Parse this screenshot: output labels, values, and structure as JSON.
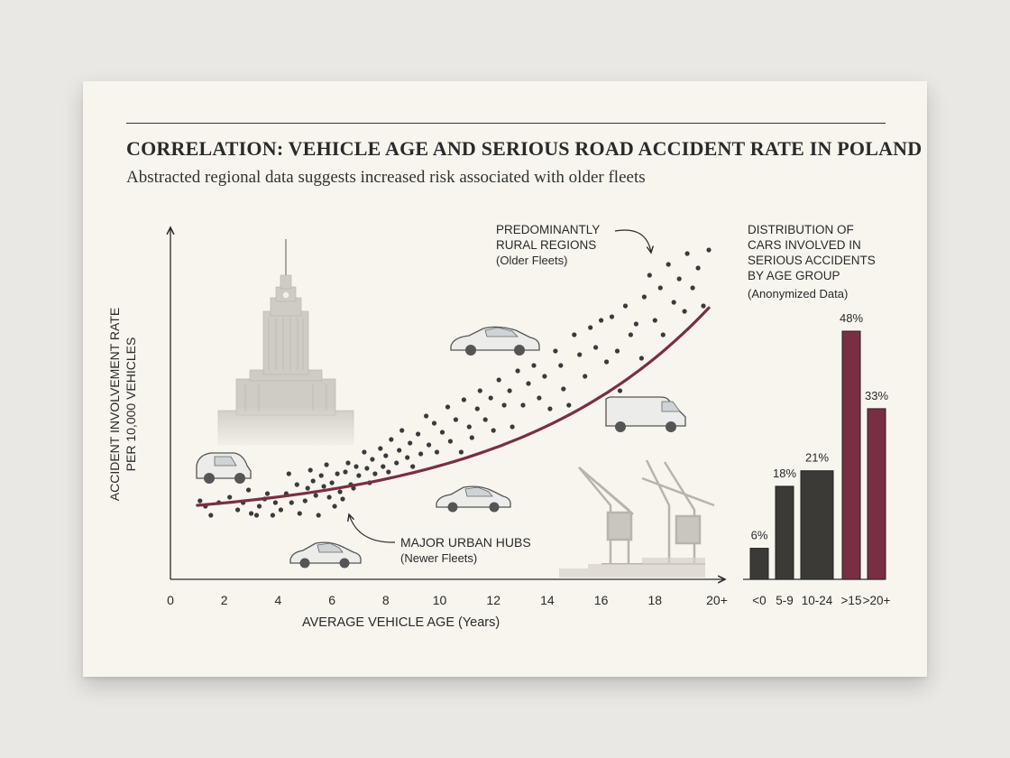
{
  "title": "CORRELATION: VEHICLE AGE AND SERIOUS ROAD ACCIDENT RATE IN POLAND",
  "subtitle": "Abstracted regional data suggests increased risk associated with older fleets",
  "colors": {
    "accent": "#7a2e44",
    "bar_dark": "#3b3a37",
    "dots": "#3a3a3a",
    "background": "#f7f5ee"
  },
  "chart_data": [
    {
      "type": "scatter",
      "xlabel": "AVERAGE VEHICLE AGE",
      "xlabel_unit": "(Years)",
      "ylabel_line1": "ACCIDENT INVOLVEMENT RATE",
      "ylabel_line2": "PER 10,000 VEHICLES",
      "xlim": [
        0,
        20
      ],
      "x_ticks": [
        "0",
        "2",
        "4",
        "6",
        "8",
        "10",
        "12",
        "14",
        "16",
        "18",
        "20+"
      ],
      "grid": false,
      "trend_line": {
        "type": "exponential-fit"
      },
      "points": [
        [
          1.1,
          0.1
        ],
        [
          1.3,
          0.07
        ],
        [
          1.5,
          0.02
        ],
        [
          1.8,
          0.09
        ],
        [
          2.2,
          0.12
        ],
        [
          2.5,
          0.05
        ],
        [
          2.7,
          0.09
        ],
        [
          2.9,
          0.16
        ],
        [
          3.0,
          0.03
        ],
        [
          3.2,
          0.02
        ],
        [
          3.3,
          0.07
        ],
        [
          3.5,
          0.11
        ],
        [
          3.6,
          0.14
        ],
        [
          3.8,
          0.02
        ],
        [
          3.9,
          0.09
        ],
        [
          4.1,
          0.05
        ],
        [
          4.3,
          0.14
        ],
        [
          4.4,
          0.25
        ],
        [
          4.5,
          0.09
        ],
        [
          4.7,
          0.19
        ],
        [
          4.8,
          0.03
        ],
        [
          5.0,
          0.1
        ],
        [
          5.1,
          0.17
        ],
        [
          5.2,
          0.27
        ],
        [
          5.3,
          0.21
        ],
        [
          5.4,
          0.13
        ],
        [
          5.5,
          0.02
        ],
        [
          5.6,
          0.24
        ],
        [
          5.7,
          0.18
        ],
        [
          5.8,
          0.3
        ],
        [
          5.9,
          0.12
        ],
        [
          6.0,
          0.2
        ],
        [
          6.1,
          0.07
        ],
        [
          6.2,
          0.25
        ],
        [
          6.3,
          0.15
        ],
        [
          6.4,
          0.11
        ],
        [
          6.5,
          0.26
        ],
        [
          6.6,
          0.31
        ],
        [
          6.7,
          0.19
        ],
        [
          6.8,
          0.17
        ],
        [
          6.9,
          0.29
        ],
        [
          7.0,
          0.24
        ],
        [
          7.2,
          0.37
        ],
        [
          7.3,
          0.28
        ],
        [
          7.4,
          0.2
        ],
        [
          7.5,
          0.33
        ],
        [
          7.6,
          0.25
        ],
        [
          7.8,
          0.39
        ],
        [
          7.9,
          0.29
        ],
        [
          8.0,
          0.35
        ],
        [
          8.1,
          0.26
        ],
        [
          8.2,
          0.44
        ],
        [
          8.4,
          0.31
        ],
        [
          8.5,
          0.38
        ],
        [
          8.6,
          0.49
        ],
        [
          8.8,
          0.34
        ],
        [
          8.9,
          0.42
        ],
        [
          9.0,
          0.29
        ],
        [
          9.2,
          0.47
        ],
        [
          9.3,
          0.36
        ],
        [
          9.5,
          0.57
        ],
        [
          9.6,
          0.41
        ],
        [
          9.8,
          0.53
        ],
        [
          9.9,
          0.37
        ],
        [
          10.1,
          0.48
        ],
        [
          10.3,
          0.62
        ],
        [
          10.4,
          0.43
        ],
        [
          10.6,
          0.55
        ],
        [
          10.8,
          0.37
        ],
        [
          10.9,
          0.66
        ],
        [
          11.1,
          0.51
        ],
        [
          11.2,
          0.45
        ],
        [
          11.4,
          0.61
        ],
        [
          11.5,
          0.71
        ],
        [
          11.7,
          0.55
        ],
        [
          11.9,
          0.67
        ],
        [
          12.0,
          0.49
        ],
        [
          12.2,
          0.77
        ],
        [
          12.4,
          0.63
        ],
        [
          12.6,
          0.71
        ],
        [
          12.7,
          0.51
        ],
        [
          12.9,
          0.82
        ],
        [
          13.1,
          0.63
        ],
        [
          13.3,
          0.75
        ],
        [
          13.5,
          0.85
        ],
        [
          13.7,
          0.67
        ],
        [
          13.9,
          0.79
        ],
        [
          14.1,
          0.61
        ],
        [
          14.3,
          0.93
        ],
        [
          14.5,
          0.85
        ],
        [
          14.6,
          0.72
        ],
        [
          14.8,
          0.63
        ],
        [
          15.0,
          1.02
        ],
        [
          15.2,
          0.91
        ],
        [
          15.4,
          0.79
        ],
        [
          15.6,
          1.06
        ],
        [
          15.8,
          0.95
        ],
        [
          16.0,
          1.1
        ],
        [
          16.2,
          0.87
        ],
        [
          16.4,
          1.12
        ],
        [
          16.6,
          0.93
        ],
        [
          16.7,
          0.71
        ],
        [
          16.9,
          1.18
        ],
        [
          17.1,
          1.02
        ],
        [
          17.3,
          1.08
        ],
        [
          17.5,
          0.89
        ],
        [
          17.6,
          1.23
        ],
        [
          17.8,
          1.35
        ],
        [
          18.0,
          1.1
        ],
        [
          18.2,
          1.28
        ],
        [
          18.3,
          1.02
        ],
        [
          18.5,
          1.41
        ],
        [
          18.7,
          1.2
        ],
        [
          18.9,
          1.33
        ],
        [
          19.1,
          1.15
        ],
        [
          19.2,
          1.47
        ],
        [
          19.4,
          1.28
        ],
        [
          19.6,
          1.39
        ],
        [
          19.8,
          1.18
        ],
        [
          20.0,
          1.49
        ]
      ],
      "annotations": [
        {
          "line1": "PREDOMINANTLY",
          "line2": "RURAL REGIONS",
          "line3": "(Older Fleets)"
        },
        {
          "line1": "MAJOR URBAN HUBS",
          "line2": "(Newer Fleets)"
        }
      ]
    },
    {
      "type": "bar",
      "title_lines": [
        "DISTRIBUTION OF",
        "CARS INVOLVED IN",
        "SERIOUS ACCIDENTS",
        "BY AGE GROUP"
      ],
      "note": "(Anonymized Data)",
      "categories": [
        "<0",
        "5-9",
        "10-24",
        ">15",
        ">20+"
      ],
      "values": [
        6,
        18,
        21,
        48,
        33
      ],
      "value_labels": [
        "6%",
        "18%",
        "21%",
        "48%",
        "33%"
      ],
      "highlight": [
        false,
        false,
        false,
        true,
        true
      ],
      "ylim": [
        0,
        50
      ]
    }
  ]
}
